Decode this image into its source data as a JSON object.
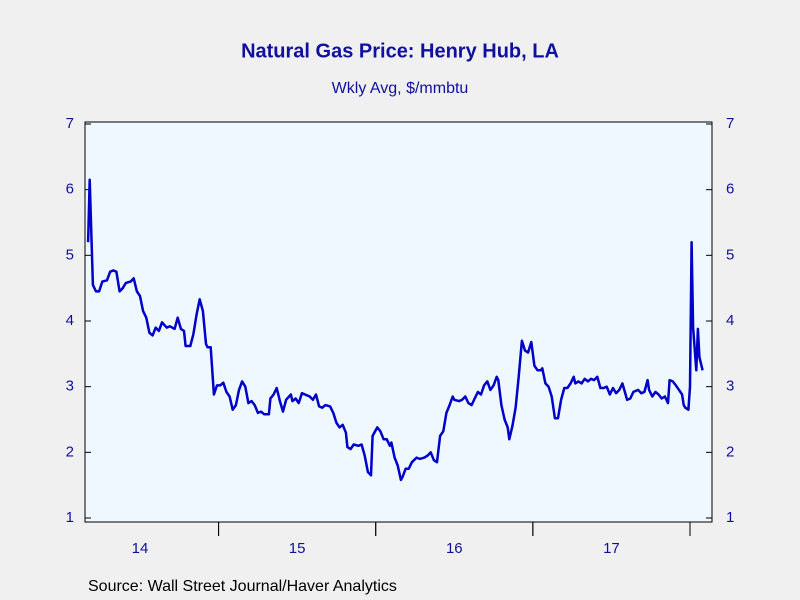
{
  "chart_data": {
    "type": "line",
    "title": "Natural Gas Price: Henry Hub, LA",
    "subtitle": "Wkly Avg, $/mmbtu",
    "source": "Source:  Wall Street Journal/Haver Analytics",
    "x": [
      2014.17,
      2014.18,
      2014.2,
      2014.22,
      2014.24,
      2014.26,
      2014.29,
      2014.31,
      2014.33,
      2014.35,
      2014.37,
      2014.39,
      2014.41,
      2014.44,
      2014.46,
      2014.48,
      2014.5,
      2014.52,
      2014.54,
      2014.56,
      2014.58,
      2014.6,
      2014.62,
      2014.64,
      2014.67,
      2014.69,
      2014.72,
      2014.74,
      2014.76,
      2014.78,
      2014.79,
      2014.82,
      2014.84,
      2014.86,
      2014.88,
      2014.9,
      2014.92,
      2014.93,
      2014.95,
      2014.97,
      2014.99,
      2015.01,
      2015.03,
      2015.05,
      2015.07,
      2015.09,
      2015.11,
      2015.13,
      2015.15,
      2015.17,
      2015.19,
      2015.21,
      2015.23,
      2015.25,
      2015.27,
      2015.29,
      2015.32,
      2015.33,
      2015.35,
      2015.37,
      2015.39,
      2015.41,
      2015.43,
      2015.46,
      2015.47,
      2015.49,
      2015.51,
      2015.53,
      2015.56,
      2015.58,
      2015.6,
      2015.62,
      2015.64,
      2015.66,
      2015.68,
      2015.71,
      2015.73,
      2015.75,
      2015.77,
      2015.79,
      2015.81,
      2015.82,
      2015.84,
      2015.86,
      2015.89,
      2015.91,
      2015.93,
      2015.95,
      2015.97,
      2015.98,
      2016.01,
      2016.03,
      2016.05,
      2016.07,
      2016.09,
      2016.1,
      2016.12,
      2016.14,
      2016.16,
      2016.17,
      2016.19,
      2016.21,
      2016.23,
      2016.26,
      2016.28,
      2016.31,
      2016.33,
      2016.35,
      2016.37,
      2016.39,
      2016.41,
      2016.43,
      2016.45,
      2016.47,
      2016.49,
      2016.5,
      2016.53,
      2016.55,
      2016.57,
      2016.59,
      2016.61,
      2016.63,
      2016.65,
      2016.67,
      2016.69,
      2016.71,
      2016.73,
      2016.75,
      2016.77,
      2016.78,
      2016.8,
      2016.82,
      2016.84,
      2016.85,
      2016.87,
      2016.89,
      2016.91,
      2016.93,
      2016.95,
      2016.97,
      2016.99,
      2017.01,
      2017.03,
      2017.05,
      2017.06,
      2017.08,
      2017.1,
      2017.12,
      2017.14,
      2017.16,
      2017.18,
      2017.2,
      2017.22,
      2017.24,
      2017.26,
      2017.27,
      2017.29,
      2017.31,
      2017.33,
      2017.35,
      2017.37,
      2017.39,
      2017.41,
      2017.43,
      2017.45,
      2017.47,
      2017.49,
      2017.51,
      2017.53,
      2017.55,
      2017.57,
      2017.59,
      2017.6,
      2017.62,
      2017.64,
      2017.67,
      2017.69,
      2017.71,
      2017.73,
      2017.74,
      2017.76,
      2017.78,
      2017.8,
      2017.82,
      2017.84,
      2017.86,
      2017.87,
      2017.89,
      2017.91,
      2017.93,
      2017.95,
      2017.96,
      2017.97,
      2017.99,
      2018.0,
      2018.01,
      2018.02,
      2018.04,
      2018.05,
      2018.06,
      2018.08
    ],
    "series": [
      {
        "name": "Henry Hub",
        "color": "#0000c8",
        "values": [
          5.2,
          6.15,
          4.55,
          4.45,
          4.45,
          4.6,
          4.62,
          4.75,
          4.77,
          4.75,
          4.45,
          4.5,
          4.58,
          4.6,
          4.65,
          4.45,
          4.38,
          4.15,
          4.05,
          3.82,
          3.78,
          3.9,
          3.85,
          3.98,
          3.9,
          3.92,
          3.88,
          4.05,
          3.88,
          3.85,
          3.62,
          3.62,
          3.8,
          4.1,
          4.33,
          4.15,
          3.65,
          3.6,
          3.6,
          2.88,
          3.02,
          3.02,
          3.06,
          2.92,
          2.85,
          2.65,
          2.72,
          2.95,
          3.08,
          3.0,
          2.75,
          2.78,
          2.72,
          2.6,
          2.62,
          2.58,
          2.58,
          2.82,
          2.88,
          2.98,
          2.78,
          2.62,
          2.8,
          2.88,
          2.78,
          2.82,
          2.75,
          2.9,
          2.87,
          2.85,
          2.8,
          2.88,
          2.7,
          2.68,
          2.72,
          2.7,
          2.6,
          2.45,
          2.38,
          2.42,
          2.3,
          2.08,
          2.05,
          2.12,
          2.1,
          2.12,
          1.95,
          1.7,
          1.65,
          2.25,
          2.38,
          2.32,
          2.2,
          2.2,
          2.1,
          2.15,
          1.92,
          1.8,
          1.58,
          1.62,
          1.75,
          1.75,
          1.85,
          1.92,
          1.9,
          1.92,
          1.95,
          2.0,
          1.88,
          1.85,
          2.25,
          2.32,
          2.6,
          2.72,
          2.85,
          2.8,
          2.78,
          2.8,
          2.85,
          2.75,
          2.72,
          2.82,
          2.92,
          2.88,
          3.02,
          3.08,
          2.95,
          3.02,
          3.15,
          3.1,
          2.72,
          2.5,
          2.38,
          2.2,
          2.4,
          2.68,
          3.15,
          3.7,
          3.55,
          3.52,
          3.68,
          3.32,
          3.25,
          3.25,
          3.28,
          3.05,
          3.0,
          2.85,
          2.52,
          2.52,
          2.8,
          2.98,
          2.98,
          3.05,
          3.15,
          3.05,
          3.08,
          3.05,
          3.12,
          3.08,
          3.12,
          3.1,
          3.15,
          2.98,
          2.98,
          3.0,
          2.88,
          2.98,
          2.9,
          2.95,
          3.05,
          2.88,
          2.8,
          2.82,
          2.92,
          2.95,
          2.9,
          2.92,
          3.1,
          2.95,
          2.85,
          2.92,
          2.88,
          2.82,
          2.85,
          2.75,
          3.1,
          3.08,
          3.02,
          2.95,
          2.88,
          2.72,
          2.68,
          2.65,
          3.0,
          5.2,
          3.9,
          3.25,
          3.88,
          3.45,
          3.25
        ]
      }
    ],
    "xlim": [
      2014.15,
      2018.14
    ],
    "xticks": [
      {
        "value": 2014.5,
        "label": "14"
      },
      {
        "value": 2015.5,
        "label": "15"
      },
      {
        "value": 2016.5,
        "label": "16"
      },
      {
        "value": 2017.5,
        "label": "17"
      }
    ],
    "ylim": [
      1,
      7
    ],
    "yticks": [
      1,
      2,
      3,
      4,
      5,
      6,
      7
    ],
    "y2lim": [
      1,
      7
    ],
    "y2ticks": [
      1,
      2,
      3,
      4,
      5,
      6,
      7
    ]
  }
}
